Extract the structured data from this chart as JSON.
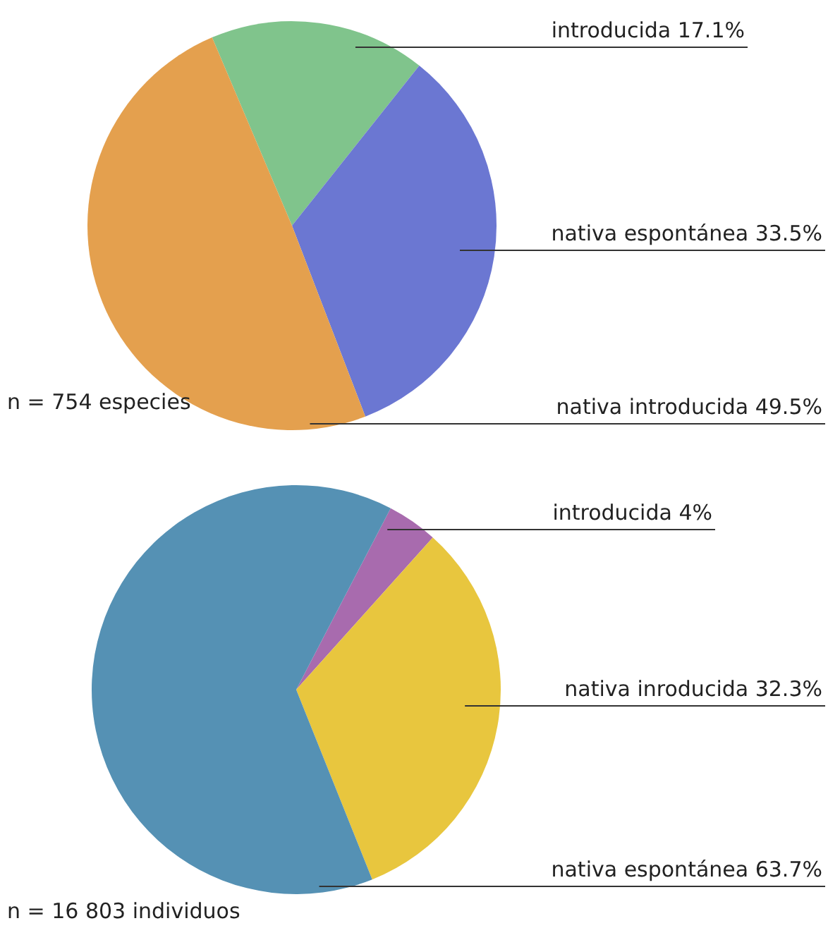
{
  "chart_data": [
    {
      "type": "pie",
      "categories": [
        "introducida",
        "nativa espontánea",
        "nativa introducida"
      ],
      "values": [
        17.1,
        33.5,
        49.5
      ],
      "value_labels": [
        "17.1%",
        "33.5%",
        "49.5%"
      ],
      "colors": [
        "#80c48c",
        "#6b77d2",
        "#e4a04e"
      ],
      "annotations": [
        "n = 754 especies"
      ]
    },
    {
      "type": "pie",
      "categories": [
        "introducida",
        "nativa inroducida",
        "nativa espontánea"
      ],
      "values": [
        4,
        32.3,
        63.7
      ],
      "value_labels": [
        "4%",
        "32.3%",
        "63.7%"
      ],
      "colors": [
        "#a86bae",
        "#e8c63e",
        "#5591b4"
      ],
      "annotations": [
        "n = 16 803 individuos"
      ]
    }
  ]
}
